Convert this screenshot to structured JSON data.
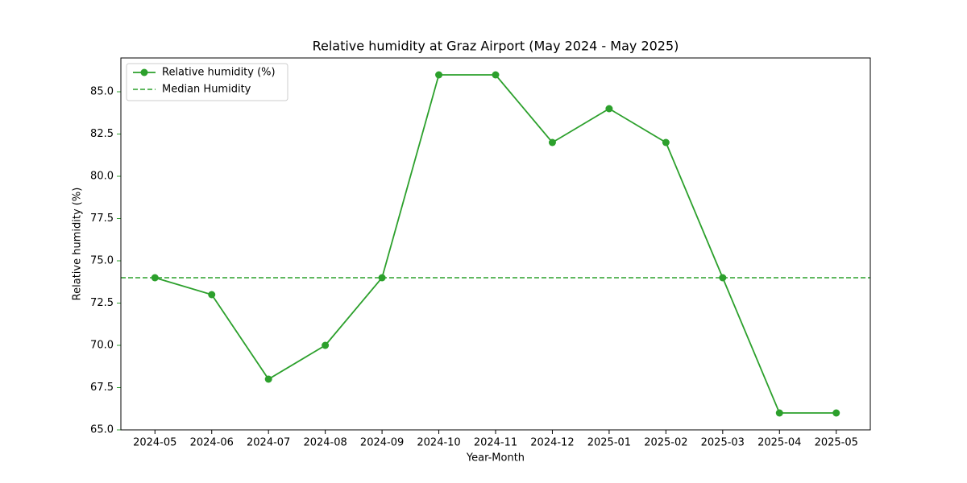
{
  "chart_data": {
    "type": "line",
    "title": "Relative humidity at Graz Airport (May 2024 - May 2025)",
    "xlabel": "Year-Month",
    "ylabel": "Relative humidity (%)",
    "categories": [
      "2024-05",
      "2024-06",
      "2024-07",
      "2024-08",
      "2024-09",
      "2024-10",
      "2024-11",
      "2024-12",
      "2025-01",
      "2025-02",
      "2025-03",
      "2025-04",
      "2025-05"
    ],
    "series": [
      {
        "name": "Relative humidity (%)",
        "color": "#2ca02c",
        "values": [
          74,
          73,
          68,
          70,
          74,
          86,
          86,
          82,
          84,
          82,
          74,
          66,
          66
        ]
      }
    ],
    "reference_lines": [
      {
        "name": "Median Humidity",
        "value": 74,
        "color": "#2ca02c",
        "style": "dashed"
      }
    ],
    "ylim": [
      65,
      87
    ],
    "yticks": [
      {
        "value": 65,
        "label": "65.0"
      },
      {
        "value": 67.5,
        "label": "67.5"
      },
      {
        "value": 70,
        "label": "70.0"
      },
      {
        "value": 72.5,
        "label": "72.5"
      },
      {
        "value": 75,
        "label": "75.0"
      },
      {
        "value": 77.5,
        "label": "77.5"
      },
      {
        "value": 80,
        "label": "80.0"
      },
      {
        "value": 82.5,
        "label": "82.5"
      },
      {
        "value": 85,
        "label": "85.0"
      }
    ],
    "axis_color": "#2ca02c",
    "legend": "upper-left",
    "grid": false
  }
}
